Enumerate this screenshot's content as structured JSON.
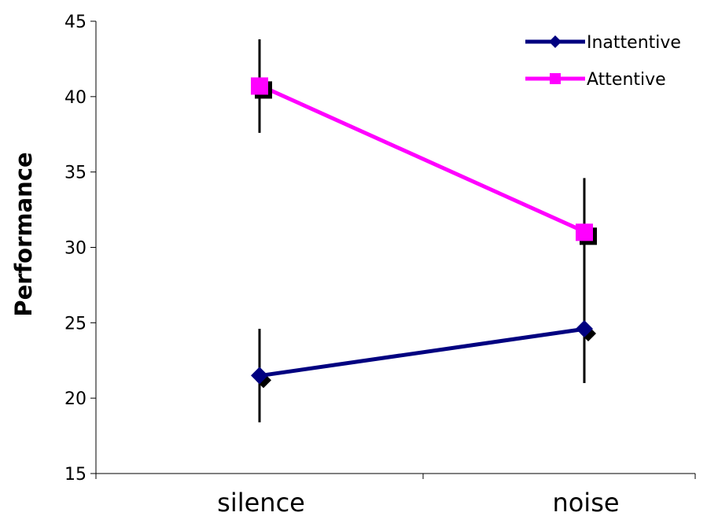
{
  "chart_data": {
    "type": "line",
    "title": "",
    "xlabel": "",
    "ylabel": "Performance",
    "categories": [
      "silence",
      "noise"
    ],
    "ylim": [
      15,
      45
    ],
    "yticks": [
      15,
      20,
      25,
      30,
      35,
      40,
      45
    ],
    "grid": false,
    "legend_position": "top-right",
    "series": [
      {
        "name": "Inattentive",
        "color": "#000080",
        "marker": "diamond",
        "values": [
          21.5,
          24.6
        ],
        "error": [
          3.1,
          3.6
        ]
      },
      {
        "name": "Attentive",
        "color": "#ff00ff",
        "marker": "square",
        "values": [
          40.7,
          31.0
        ],
        "error": [
          3.1,
          3.6
        ]
      }
    ]
  }
}
